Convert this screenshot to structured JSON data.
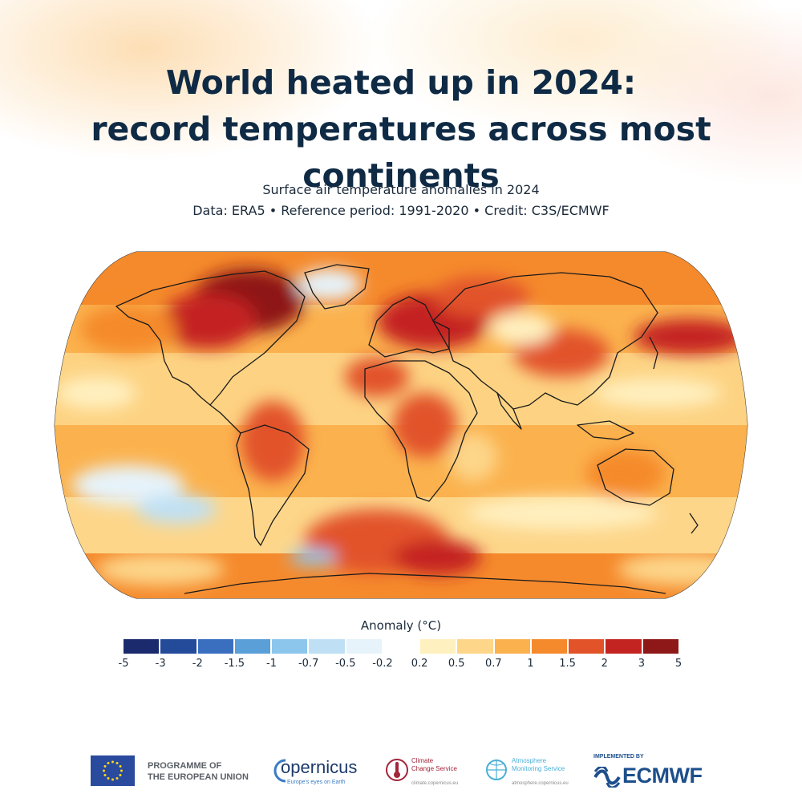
{
  "header": {
    "title_line1": "World heated up in 2024:",
    "title_line2": "record temperatures across most continents",
    "subtitle_line1": "Surface air temperature anomalies in 2024",
    "subtitle_line2": "Data: ERA5 • Reference period: 1991-2020 • Credit: C3S/ECMWF"
  },
  "map": {
    "projection": "Robinson",
    "variable": "Surface air temperature anomaly",
    "description_regions": [
      {
        "region": "Northern Canada / Hudson Bay",
        "anomaly_class": "3 to 5"
      },
      {
        "region": "Eastern Europe / Western Russia",
        "anomaly_class": "2 to 3"
      },
      {
        "region": "Antarctic coast (Weddell Sea sector)",
        "anomaly_class": "2 to 3"
      },
      {
        "region": "North Pacific (east of Japan)",
        "anomaly_class": "2 to 3"
      },
      {
        "region": "Greenland interior",
        "anomaly_class": "-0.5 to -0.2"
      },
      {
        "region": "Southeast Pacific",
        "anomaly_class": "-0.7 to -0.2"
      },
      {
        "region": "Southern Ocean south of South America",
        "anomaly_class": "-1.5 to -0.7"
      }
    ]
  },
  "legend": {
    "title": "Anomaly (°C)",
    "colors": [
      "#1a2a6c",
      "#244a9a",
      "#3a6fc0",
      "#5a9fd8",
      "#8cc6ec",
      "#bfe0f4",
      "#e6f3fa",
      "#ffffff",
      "#fff0c0",
      "#fdd68a",
      "#fbb24e",
      "#f58a2c",
      "#e2532a",
      "#c42421",
      "#8e1717"
    ],
    "ticks": [
      "-5",
      "-3",
      "-2",
      "-1.5",
      "-1",
      "-0.7",
      "-0.5",
      "-0.2",
      "0.2",
      "0.5",
      "0.7",
      "1",
      "1.5",
      "2",
      "3",
      "5"
    ]
  },
  "footer": {
    "eu_line1": "PROGRAMME OF",
    "eu_line2": "THE EUROPEAN UNION",
    "copernicus_name": "opernicus",
    "copernicus_tagline": "Europe's eyes on Earth",
    "c3s_name_line1": "Climate",
    "c3s_name_line2": "Change Service",
    "c3s_url": "climate.copernicus.eu",
    "cams_name_line1": "Atmosphere",
    "cams_name_line2": "Monitoring Service",
    "cams_url": "atmosphere.copernicus.eu",
    "ecmwf_implemented": "IMPLEMENTED BY",
    "ecmwf_name": "ECMWF",
    "brand_colors": {
      "eu_blue": "#2a4a9e",
      "eu_star": "#ffd617",
      "c3s_red": "#a3263a",
      "cams_blue": "#4ab0d8",
      "ecmwf_blue": "#1d4f8c"
    }
  }
}
